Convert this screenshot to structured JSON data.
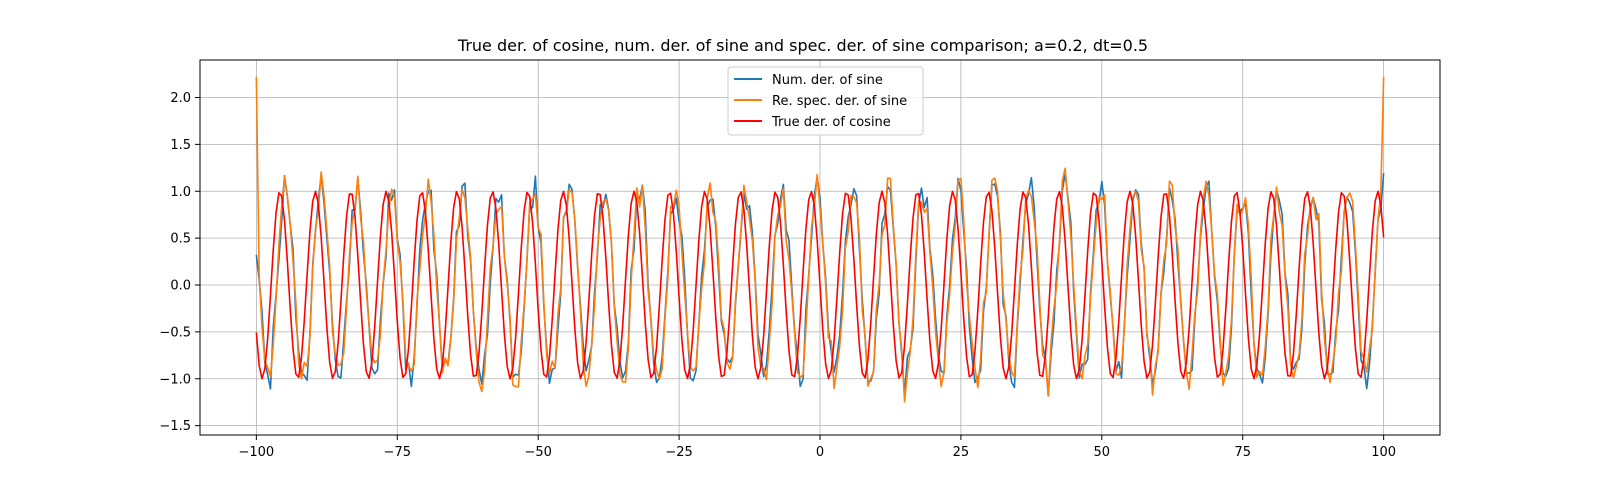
{
  "chart_data": {
    "type": "line",
    "title": "True der. of cosine, num. der. of sine and spec. der. of sine comparison; a=0.2, dt=0.5",
    "xlabel": "",
    "ylabel": "",
    "xlim": [
      -110,
      110
    ],
    "ylim": [
      -1.6,
      2.4
    ],
    "grid": true,
    "legend_position": "upper-center",
    "x_ticks": [
      -100,
      -75,
      -50,
      -25,
      0,
      25,
      50,
      75,
      100
    ],
    "x_tick_labels": [
      "−100",
      "−75",
      "−50",
      "−25",
      "0",
      "25",
      "50",
      "75",
      "100"
    ],
    "y_ticks": [
      -1.5,
      -1.0,
      -0.5,
      0.0,
      0.5,
      1.0,
      1.5,
      2.0
    ],
    "y_tick_labels": [
      "−1.5",
      "−1.0",
      "−0.5",
      "0.0",
      "0.5",
      "1.0",
      "1.5",
      "2.0"
    ],
    "x_range": {
      "start": -100,
      "end": 100,
      "step": 0.5
    },
    "series": [
      {
        "name": "Num. der. of sine",
        "color": "#1f77b4",
        "function": "cos(x + 0.5) + noise",
        "approx_frequency": 1.0,
        "noise_amplitude": 0.2
      },
      {
        "name": "Re. spec. der. of sine",
        "color": "#ff7f0e",
        "function": "cos(x + 0.5) + noise",
        "approx_frequency": 1.0,
        "noise_amplitude": 0.2,
        "endpoints": [
          2.22,
          2.22
        ]
      },
      {
        "name": "True der. of cosine",
        "color": "#ff0000",
        "function": "-sin(x)",
        "approx_frequency": 1.0
      }
    ]
  }
}
